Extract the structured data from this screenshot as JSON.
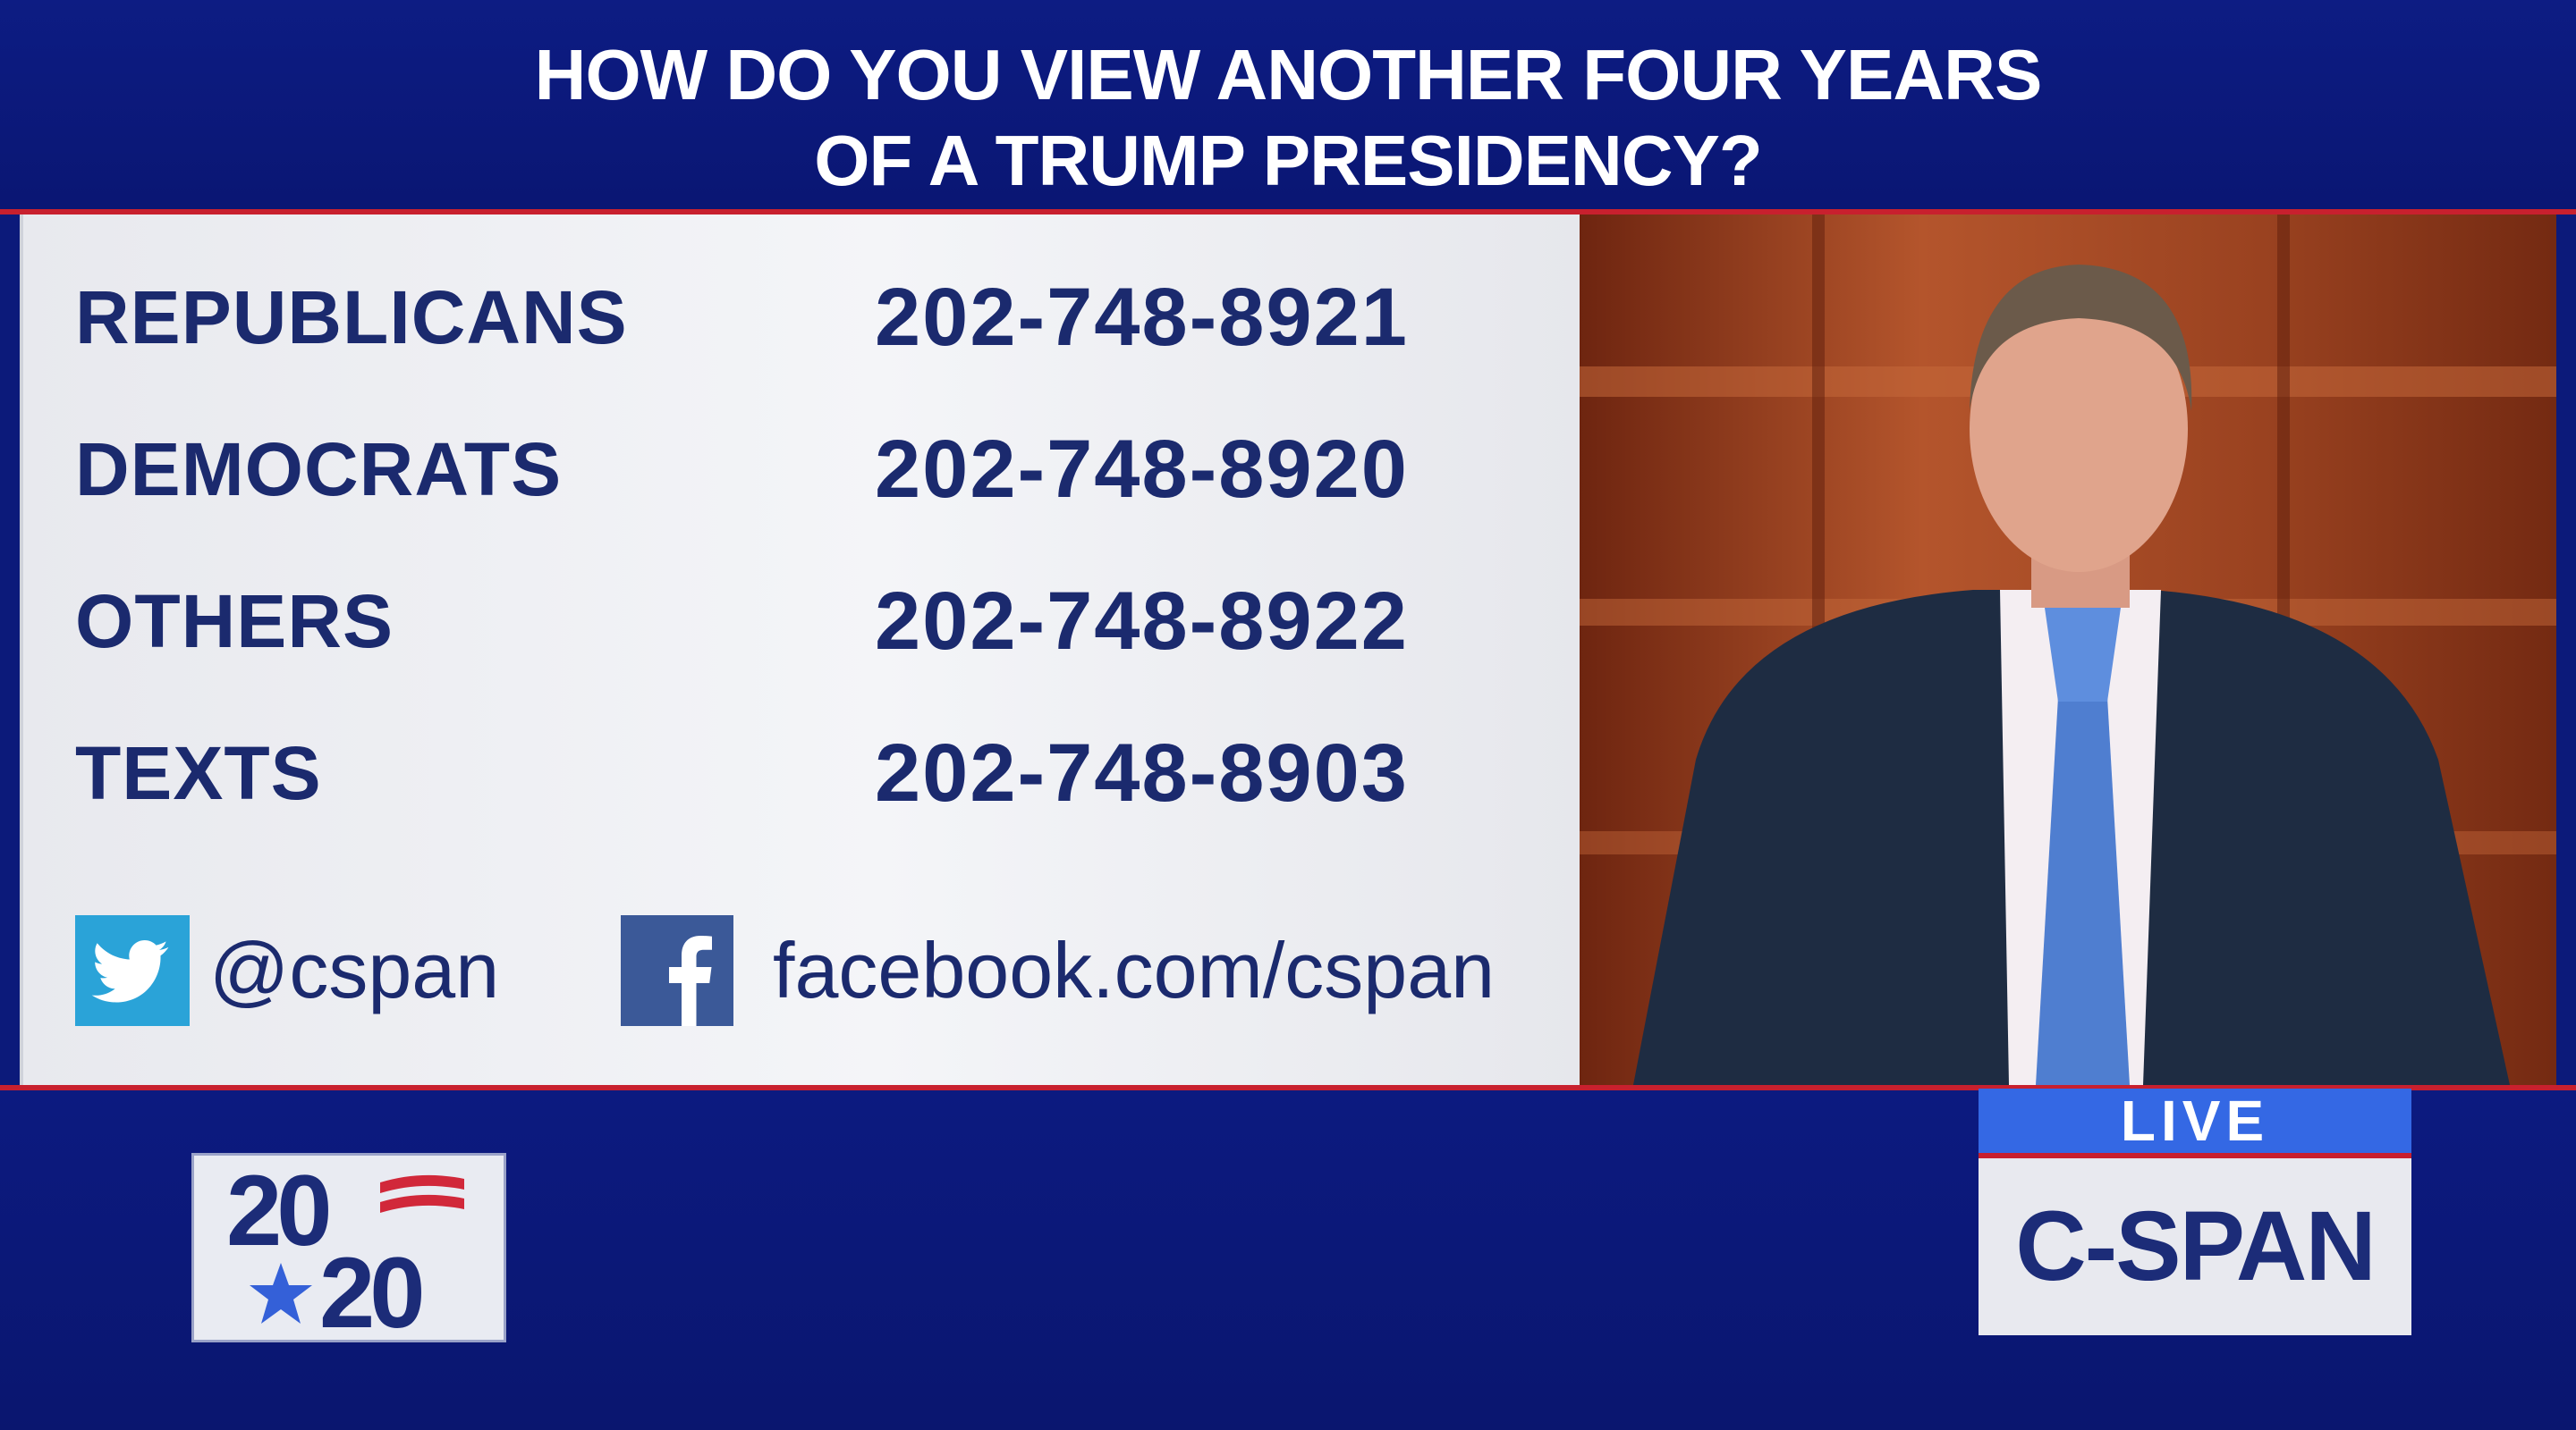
{
  "headline": {
    "line1": "HOW DO YOU VIEW ANOTHER FOUR YEARS",
    "line2": "OF A TRUMP PRESIDENCY?"
  },
  "call_lines": [
    {
      "label": "REPUBLICANS",
      "number": "202-748-8921"
    },
    {
      "label": "DEMOCRATS",
      "number": "202-748-8920"
    },
    {
      "label": "OTHERS",
      "number": "202-748-8922"
    },
    {
      "label": "TEXTS",
      "number": "202-748-8903"
    }
  ],
  "social": {
    "twitter_icon": "twitter-bird-icon",
    "twitter_handle": "@cspan",
    "facebook_icon": "facebook-f-icon",
    "facebook_url": "facebook.com/cspan"
  },
  "logo_2020": {
    "top_digits": "20",
    "bottom_digits": "20"
  },
  "network": {
    "status": "LIVE",
    "name": "C-SPAN"
  },
  "colors": {
    "navy": "#0c1a7a",
    "red": "#c8202e",
    "text_navy": "#1b2a6e",
    "live_blue": "#3468e4",
    "twitter_blue": "#2aa3d8",
    "facebook_blue": "#3b5998"
  }
}
